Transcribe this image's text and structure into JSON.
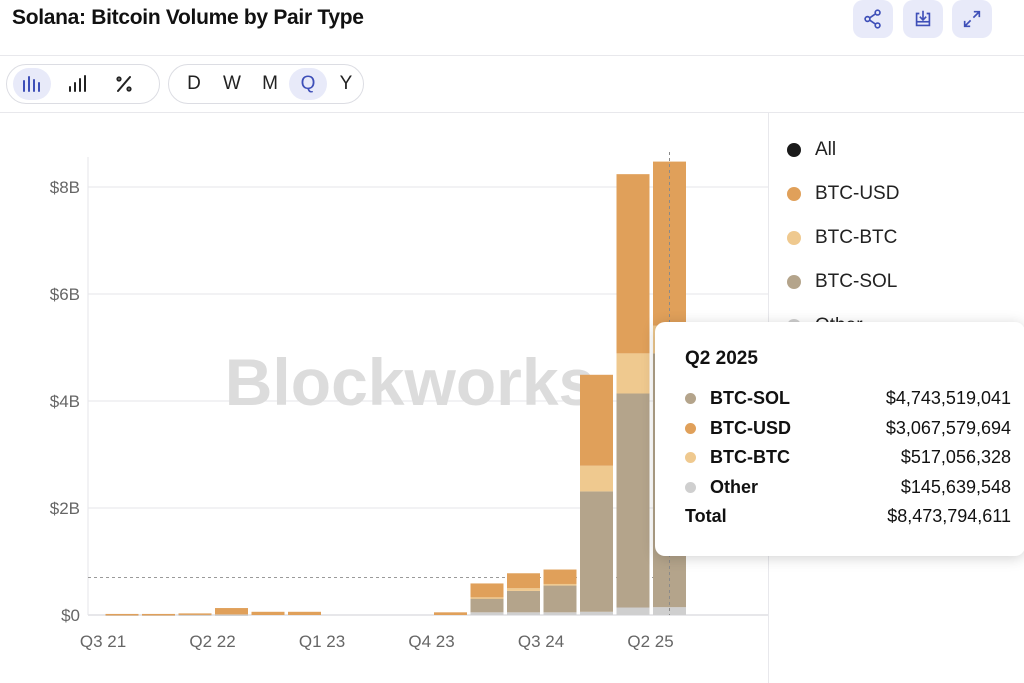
{
  "header": {
    "title": "Solana: Bitcoin Volume by Pair Type",
    "buttons": [
      {
        "name": "share-icon"
      },
      {
        "name": "download-icon"
      },
      {
        "name": "expand-icon"
      }
    ]
  },
  "toolbar": {
    "chart_types": [
      {
        "name": "stacked-bar-icon",
        "active": true
      },
      {
        "name": "bar-icon",
        "active": false
      },
      {
        "name": "percent-icon",
        "active": false
      }
    ],
    "intervals": [
      {
        "label": "D",
        "active": false
      },
      {
        "label": "W",
        "active": false
      },
      {
        "label": "M",
        "active": false
      },
      {
        "label": "Q",
        "active": true
      },
      {
        "label": "Y",
        "active": false
      }
    ]
  },
  "legend": [
    {
      "label": "All",
      "color": "#1a1a1a"
    },
    {
      "label": "BTC-USD",
      "color": "#e0a05a"
    },
    {
      "label": "BTC-BTC",
      "color": "#efc98f"
    },
    {
      "label": "BTC-SOL",
      "color": "#b4a48b"
    },
    {
      "label": "Other",
      "color": "#cfcfcf"
    }
  ],
  "watermark": "Blockworks",
  "tooltip": {
    "title": "Q2 2025",
    "rows": [
      {
        "label": "BTC-SOL",
        "value": "$4,743,519,041",
        "color": "#b4a48b"
      },
      {
        "label": "BTC-USD",
        "value": "$3,067,579,694",
        "color": "#e0a05a"
      },
      {
        "label": "BTC-BTC",
        "value": "$517,056,328",
        "color": "#efc98f"
      },
      {
        "label": "Other",
        "value": "$145,639,548",
        "color": "#cfcfcf"
      }
    ],
    "total_label": "Total",
    "total_value": "$8,473,794,611"
  },
  "chart_data": {
    "type": "bar",
    "stacked": true,
    "title": "Solana: Bitcoin Volume by Pair Type",
    "categories": [
      "Q3 21",
      "Q4 21",
      "Q1 22",
      "Q2 22",
      "Q3 22",
      "Q4 22",
      "Q1 23",
      "Q2 23",
      "Q3 23",
      "Q4 23",
      "Q1 24",
      "Q2 24",
      "Q3 24",
      "Q4 24",
      "Q1 25",
      "Q2 25"
    ],
    "x_tick_labels": [
      "Q3 21",
      "Q2 22",
      "Q1 23",
      "Q4 23",
      "Q3 24",
      "Q2 25"
    ],
    "y_tick_labels": [
      "$0",
      "$2B",
      "$4B",
      "$6B",
      "$8B"
    ],
    "y_ticks": [
      0,
      2,
      4,
      6,
      8
    ],
    "ylim": [
      0,
      8.5
    ],
    "y_unit": "billion USD",
    "series": [
      {
        "name": "Other",
        "color": "#cfcfcf",
        "values": [
          0.01,
          0.01,
          0.01,
          0.01,
          0,
          0,
          0,
          0,
          0,
          0,
          0.05,
          0.05,
          0.05,
          0.06,
          0.14,
          0.146
        ]
      },
      {
        "name": "BTC-SOL",
        "color": "#b4a48b",
        "values": [
          0,
          0,
          0,
          0,
          0,
          0,
          0,
          0,
          0,
          0,
          0.26,
          0.4,
          0.5,
          2.25,
          4.0,
          4.744
        ]
      },
      {
        "name": "BTC-BTC",
        "color": "#efc98f",
        "values": [
          0,
          0,
          0,
          0,
          0,
          0,
          0,
          0,
          0,
          0,
          0.02,
          0.05,
          0.03,
          0.48,
          0.75,
          0.517
        ]
      },
      {
        "name": "BTC-USD",
        "color": "#e0a05a",
        "values": [
          0.01,
          0.01,
          0.02,
          0.12,
          0.06,
          0.06,
          0,
          0,
          0,
          0.05,
          0.26,
          0.28,
          0.27,
          1.7,
          3.35,
          3.068
        ]
      }
    ],
    "reference_line": 0.7,
    "hover_category": "Q2 25",
    "grid": true,
    "legend_position": "right"
  }
}
